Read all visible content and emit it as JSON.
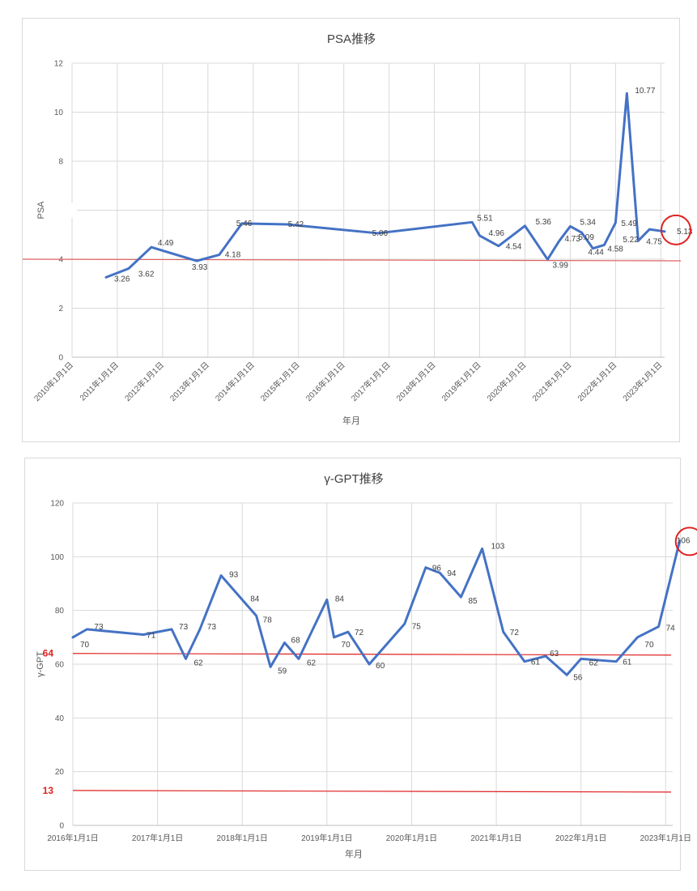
{
  "chart_data": [
    {
      "type": "line",
      "title": "PSA推移",
      "xlabel": "年月",
      "ylabel": "PSA",
      "ylim": [
        0,
        12
      ],
      "yticks": [
        "0",
        "2",
        "4",
        "8",
        "10",
        "12"
      ],
      "grid": true,
      "x_tick_labels": [
        "2010年1月1日",
        "2011年1月1日",
        "2012年1月1日",
        "2013年1月1日",
        "2014年1月1日",
        "2015年1月1日",
        "2016年1月1日",
        "2017年1月1日",
        "2018年1月1日",
        "2019年1月1日",
        "2020年1月1日",
        "2021年1月1日",
        "2022年1月1日",
        "2023年1月1日"
      ],
      "series": [
        {
          "color": "#4472c4",
          "points": [
            {
              "x": "2010-10",
              "y": 3.26,
              "label": "3.26"
            },
            {
              "x": "2011-04",
              "y": 3.62,
              "label": "3.62"
            },
            {
              "x": "2011-10",
              "y": 4.49,
              "label": "4.49"
            },
            {
              "x": "2012-10",
              "y": 3.93,
              "label": "3.93"
            },
            {
              "x": "2013-04",
              "y": 4.18,
              "label": "4.18"
            },
            {
              "x": "2013-10",
              "y": 5.46,
              "label": "5.46"
            },
            {
              "x": "2014-10",
              "y": 5.42,
              "label": "5.42"
            },
            {
              "x": "2016-10",
              "y": 5.06,
              "label": "5.06"
            },
            {
              "x": "2018-11",
              "y": 5.51,
              "label": "5.51"
            },
            {
              "x": "2019-01",
              "y": 4.96,
              "label": "4.96"
            },
            {
              "x": "2019-06",
              "y": 4.54,
              "label": "4.54"
            },
            {
              "x": "2020-01",
              "y": 5.36,
              "label": "5.36"
            },
            {
              "x": "2020-07",
              "y": 3.99,
              "label": "3.99"
            },
            {
              "x": "2020-10",
              "y": 4.73,
              "label": "4.73"
            },
            {
              "x": "2021-01",
              "y": 5.34,
              "label": "5.34"
            },
            {
              "x": "2021-04",
              "y": 5.09,
              "label": "5.09"
            },
            {
              "x": "2021-07",
              "y": 4.44,
              "label": "4.44"
            },
            {
              "x": "2021-10",
              "y": 4.58,
              "label": "4.58"
            },
            {
              "x": "2022-01",
              "y": 5.49,
              "label": "5.49"
            },
            {
              "x": "2022-04",
              "y": 10.77,
              "label": "10.77"
            },
            {
              "x": "2022-07",
              "y": 4.75,
              "label": "4.75"
            },
            {
              "x": "2022-10",
              "y": 5.22,
              "label": "5.22"
            },
            {
              "x": "2023-02",
              "y": 5.13,
              "label": "5.13"
            }
          ]
        }
      ],
      "reference_lines": [
        {
          "y": 4.0,
          "color": "#e06060"
        }
      ],
      "highlight": {
        "label": "5.13",
        "color": "#e02020"
      }
    },
    {
      "type": "line",
      "title": "γ-GPT推移",
      "xlabel": "年月",
      "ylabel": "γ-GPT",
      "ylim": [
        0,
        120
      ],
      "yticks": [
        "0",
        "20",
        "40",
        "60",
        "80",
        "100",
        "120"
      ],
      "grid": true,
      "x_tick_labels": [
        "2016年1月1日",
        "2017年1月1日",
        "2018年1月1日",
        "2019年1月1日",
        "2020年1月1日",
        "2021年1月1日",
        "2022年1月1日",
        "2023年1月1日"
      ],
      "series": [
        {
          "color": "#4472c4",
          "points": [
            {
              "x": "2016-01",
              "y": 70,
              "label": "70"
            },
            {
              "x": "2016-03",
              "y": 73,
              "label": "73"
            },
            {
              "x": "2016-11",
              "y": 71,
              "label": "71"
            },
            {
              "x": "2017-03",
              "y": 73,
              "label": "73"
            },
            {
              "x": "2017-05",
              "y": 62,
              "label": "62"
            },
            {
              "x": "2017-07",
              "y": 73,
              "label": "73"
            },
            {
              "x": "2017-10",
              "y": 93,
              "label": "93"
            },
            {
              "x": "2018-01",
              "y": 84,
              "label": "84"
            },
            {
              "x": "2018-03",
              "y": 78,
              "label": "78"
            },
            {
              "x": "2018-05",
              "y": 59,
              "label": "59"
            },
            {
              "x": "2018-07",
              "y": 68,
              "label": "68"
            },
            {
              "x": "2018-09",
              "y": 62,
              "label": "62"
            },
            {
              "x": "2019-01",
              "y": 84,
              "label": "84"
            },
            {
              "x": "2019-02",
              "y": 70,
              "label": "70"
            },
            {
              "x": "2019-04",
              "y": 72,
              "label": "72"
            },
            {
              "x": "2019-07",
              "y": 60,
              "label": "60"
            },
            {
              "x": "2019-12",
              "y": 75,
              "label": "75"
            },
            {
              "x": "2020-03",
              "y": 96,
              "label": "96"
            },
            {
              "x": "2020-05",
              "y": 94,
              "label": "94"
            },
            {
              "x": "2020-08",
              "y": 85,
              "label": "85"
            },
            {
              "x": "2020-11",
              "y": 103,
              "label": "103"
            },
            {
              "x": "2021-02",
              "y": 72,
              "label": "72"
            },
            {
              "x": "2021-05",
              "y": 61,
              "label": "61"
            },
            {
              "x": "2021-08",
              "y": 63,
              "label": "63"
            },
            {
              "x": "2021-11",
              "y": 56,
              "label": "56"
            },
            {
              "x": "2022-01",
              "y": 62,
              "label": "62"
            },
            {
              "x": "2022-06",
              "y": 61,
              "label": "61"
            },
            {
              "x": "2022-09",
              "y": 70,
              "label": "70"
            },
            {
              "x": "2022-12",
              "y": 74,
              "label": "74"
            },
            {
              "x": "2023-03",
              "y": 106,
              "label": "106"
            }
          ]
        }
      ],
      "reference_lines": [
        {
          "y": 64,
          "label": "64",
          "color": "#e02020"
        },
        {
          "y": 13,
          "label": "13",
          "color": "#e02020"
        }
      ],
      "highlight": {
        "label": "106",
        "color": "#e02020"
      }
    }
  ]
}
